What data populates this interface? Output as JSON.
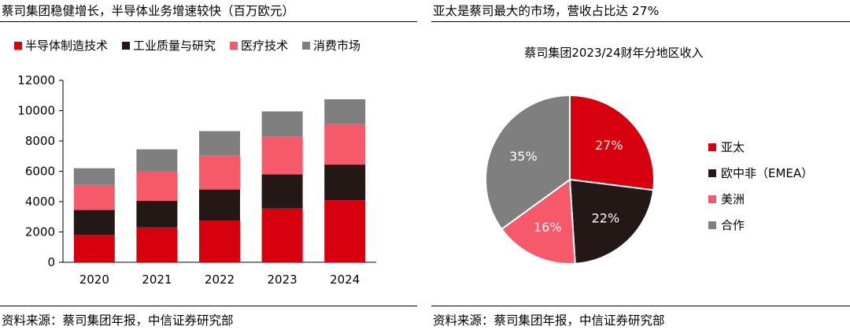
{
  "left": {
    "title": "蔡司集团稳健增长，半导体业务增速较快（百万欧元）",
    "source": "资料来源：蔡司集团年报，中信证券研究部"
  },
  "right": {
    "title": "亚太是蔡司最大的市场，营收占比达 27%",
    "source": "资料来源：蔡司集团年报，中信证券研究部"
  },
  "chart_data": [
    {
      "type": "bar",
      "stacked": true,
      "categories": [
        "2020",
        "2021",
        "2022",
        "2023",
        "2024"
      ],
      "series": [
        {
          "name": "半导体制造技术",
          "color": "#D7000F",
          "values": [
            1800,
            2300,
            2750,
            3550,
            4100
          ]
        },
        {
          "name": "工业质量与研究",
          "color": "#231815",
          "values": [
            1650,
            1750,
            2050,
            2250,
            2350
          ]
        },
        {
          "name": "医疗技术",
          "color": "#F5596A",
          "values": [
            1650,
            1950,
            2250,
            2500,
            2650
          ]
        },
        {
          "name": "消费市场",
          "color": "#7F7F7F",
          "values": [
            1100,
            1450,
            1600,
            1650,
            1650
          ]
        }
      ],
      "ylim": [
        0,
        12000
      ],
      "yticks": [
        0,
        2000,
        4000,
        6000,
        8000,
        10000,
        12000
      ],
      "legend": "top",
      "grid": false
    },
    {
      "type": "pie",
      "title": "蔡司集团2023/24财年分地区收入",
      "slices": [
        {
          "name": "亚太",
          "value": 27,
          "label": "27%",
          "color": "#D7000F"
        },
        {
          "name": "欧中非（EMEA）",
          "value": 22,
          "label": "22%",
          "color": "#231815"
        },
        {
          "name": "美洲",
          "value": 16,
          "label": "16%",
          "color": "#F5596A"
        },
        {
          "name": "合作",
          "value": 35,
          "label": "35%",
          "color": "#7F7F7F"
        }
      ],
      "legend": "right"
    }
  ]
}
